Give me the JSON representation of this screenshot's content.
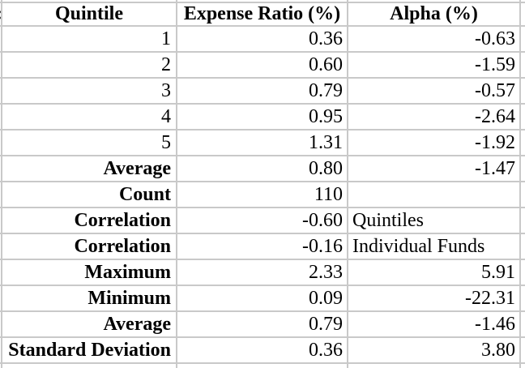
{
  "table": {
    "left_edge_fragment": ":",
    "headers": {
      "quintile": "Quintile",
      "expense_ratio": "Expense Ratio (%)",
      "alpha": "Alpha (%)"
    },
    "rows": [
      {
        "label": "1",
        "expense": "0.36",
        "alpha": "-0.63"
      },
      {
        "label": "2",
        "expense": "0.60",
        "alpha": "-1.59"
      },
      {
        "label": "3",
        "expense": "0.79",
        "alpha": "-0.57"
      },
      {
        "label": "4",
        "expense": "0.95",
        "alpha": "-2.64"
      },
      {
        "label": "5",
        "expense": "1.31",
        "alpha": "-1.92"
      },
      {
        "label": "Average",
        "expense": "0.80",
        "alpha": "-1.47"
      },
      {
        "label": "Count",
        "expense": "110",
        "alpha": ""
      },
      {
        "label": "Correlation",
        "expense": "-0.60",
        "alpha": "Quintiles"
      },
      {
        "label": "Correlation",
        "expense": "-0.16",
        "alpha": "Individual Funds"
      },
      {
        "label": "Maximum",
        "expense": "2.33",
        "alpha": "5.91"
      },
      {
        "label": "Minimum",
        "expense": "0.09",
        "alpha": "-22.31"
      },
      {
        "label": "Average",
        "expense": "0.79",
        "alpha": "-1.46"
      },
      {
        "label": "Standard Deviation",
        "expense": "0.36",
        "alpha": "3.80"
      }
    ]
  },
  "colors": {
    "background": "#ffffff",
    "gridline": "#c9c9c9",
    "text": "#000000"
  }
}
